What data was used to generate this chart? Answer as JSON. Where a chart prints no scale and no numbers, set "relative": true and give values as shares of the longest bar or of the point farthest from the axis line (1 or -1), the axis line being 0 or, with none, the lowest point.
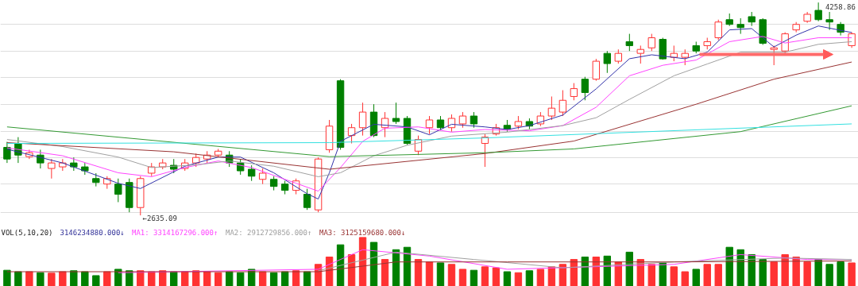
{
  "chart_data": [
    {
      "type": "candlestick",
      "categories": [
        null,
        null,
        null,
        null,
        null,
        null,
        null,
        null,
        null,
        null,
        null,
        null,
        null,
        null,
        null,
        null,
        null,
        null,
        null,
        null,
        null,
        null,
        null,
        null,
        null,
        null,
        null,
        null,
        null,
        null,
        null,
        null,
        null,
        null,
        null,
        null,
        null,
        null,
        null,
        null,
        null,
        null,
        null,
        null,
        null,
        null,
        null,
        null,
        null,
        null,
        null,
        null,
        null,
        null,
        null,
        null,
        null,
        null,
        null,
        null,
        null,
        null,
        null,
        null,
        null,
        null,
        null,
        null,
        null,
        null,
        null,
        null,
        null,
        null,
        null,
        null,
        null
      ],
      "ohlc": [
        [
          3154,
          3196,
          3035,
          3065
        ],
        [
          3184,
          3232,
          3035,
          3095
        ],
        [
          3083,
          3136,
          3065,
          3113
        ],
        [
          3095,
          3136,
          2993,
          3035
        ],
        [
          2993,
          3065,
          2916,
          3035
        ],
        [
          3005,
          3065,
          2975,
          3035
        ],
        [
          3035,
          3077,
          2975,
          3005
        ],
        [
          3005,
          3035,
          2945,
          2975
        ],
        [
          2916,
          2957,
          2856,
          2886
        ],
        [
          2874,
          2934,
          2838,
          2916
        ],
        [
          2874,
          2916,
          2736,
          2796
        ],
        [
          2886,
          2916,
          2659,
          2695
        ],
        [
          2695,
          2934,
          2635.09,
          2916
        ],
        [
          2957,
          3035,
          2934,
          3005
        ],
        [
          3005,
          3065,
          2987,
          3035
        ],
        [
          3017,
          3065,
          2957,
          2987
        ],
        [
          2993,
          3065,
          2975,
          3035
        ],
        [
          3035,
          3107,
          3005,
          3077
        ],
        [
          3065,
          3125,
          3035,
          3095
        ],
        [
          3095,
          3142,
          3077,
          3125
        ],
        [
          3095,
          3125,
          3005,
          3035
        ],
        [
          3035,
          3065,
          2945,
          2975
        ],
        [
          2987,
          3017,
          2898,
          2934
        ],
        [
          2910,
          2993,
          2874,
          2957
        ],
        [
          2910,
          2934,
          2826,
          2856
        ],
        [
          2874,
          2898,
          2796,
          2826
        ],
        [
          2826,
          2916,
          2796,
          2898
        ],
        [
          2796,
          2838,
          2677,
          2695
        ],
        [
          2677,
          3077,
          2659,
          3065
        ],
        [
          3136,
          3363,
          3113,
          3316
        ],
        [
          3662,
          3674,
          3136,
          3154
        ],
        [
          3244,
          3333,
          3184,
          3304
        ],
        [
          3304,
          3495,
          3244,
          3423
        ],
        [
          3423,
          3483,
          3232,
          3244
        ],
        [
          3304,
          3423,
          3232,
          3375
        ],
        [
          3375,
          3495,
          3333,
          3351
        ],
        [
          3375,
          3393,
          3172,
          3184
        ],
        [
          3125,
          3244,
          3095,
          3214
        ],
        [
          3304,
          3393,
          3256,
          3363
        ],
        [
          3363,
          3393,
          3286,
          3304
        ],
        [
          3304,
          3405,
          3274,
          3375
        ],
        [
          3333,
          3423,
          3304,
          3393
        ],
        [
          3393,
          3423,
          3304,
          3333
        ],
        [
          3184,
          3256,
          3005,
          3232
        ],
        [
          3256,
          3333,
          3244,
          3304
        ],
        [
          3322,
          3363,
          3274,
          3292
        ],
        [
          3316,
          3393,
          3292,
          3351
        ],
        [
          3351,
          3375,
          3292,
          3316
        ],
        [
          3333,
          3423,
          3316,
          3393
        ],
        [
          3393,
          3542,
          3363,
          3453
        ],
        [
          3423,
          3590,
          3393,
          3513
        ],
        [
          3542,
          3644,
          3513,
          3602
        ],
        [
          3674,
          3692,
          3513,
          3572
        ],
        [
          3674,
          3829,
          3662,
          3811
        ],
        [
          3871,
          3889,
          3722,
          3793
        ],
        [
          3811,
          3901,
          3793,
          3871
        ],
        [
          3960,
          4020,
          3889,
          3930
        ],
        [
          3871,
          3930,
          3793,
          3901
        ],
        [
          3913,
          4020,
          3889,
          3990
        ],
        [
          3978,
          3990,
          3823,
          3829
        ],
        [
          3841,
          3930,
          3811,
          3871
        ],
        [
          3841,
          3901,
          3781,
          3871
        ],
        [
          3930,
          3960,
          3871,
          3889
        ],
        [
          3930,
          3990,
          3901,
          3960
        ],
        [
          3990,
          4128,
          3972,
          4110
        ],
        [
          4128,
          4175,
          4080,
          4092
        ],
        [
          4092,
          4139,
          4020,
          4068
        ],
        [
          4151,
          4187,
          4080,
          4110
        ],
        [
          4128,
          4139,
          3936,
          3948
        ],
        [
          3901,
          3930,
          3781,
          3913
        ],
        [
          3889,
          4032,
          3865,
          4020
        ],
        [
          4050,
          4110,
          4032,
          4092
        ],
        [
          4116,
          4187,
          4104,
          4169
        ],
        [
          4199,
          4258.86,
          4116,
          4128
        ],
        [
          4128,
          4187,
          4050,
          4110
        ],
        [
          4092,
          4110,
          4008,
          4032
        ],
        [
          3930,
          4032,
          3913,
          4020
        ]
      ],
      "colors": [
        "#008000",
        "#008000",
        "#ff3232",
        "#008000",
        "#ff3232",
        "#ff3232",
        "#008000",
        "#008000",
        "#008000",
        "#ff3232",
        "#008000",
        "#008000",
        "#ff3232",
        "#ff3232",
        "#ff3232",
        "#008000",
        "#ff3232",
        "#ff3232",
        "#ff3232",
        "#ff3232",
        "#008000",
        "#008000",
        "#008000",
        "#ff3232",
        "#008000",
        "#008000",
        "#ff3232",
        "#008000",
        "#ff3232",
        "#ff3232",
        "#008000",
        "#ff3232",
        "#ff3232",
        "#008000",
        "#ff3232",
        "#008000",
        "#008000",
        "#ff3232",
        "#ff3232",
        "#008000",
        "#ff3232",
        "#ff3232",
        "#008000",
        "#ff3232",
        "#ff3232",
        "#008000",
        "#ff3232",
        "#008000",
        "#ff3232",
        "#ff3232",
        "#ff3232",
        "#ff3232",
        "#008000",
        "#ff3232",
        "#008000",
        "#ff3232",
        "#008000",
        "#ff3232",
        "#ff3232",
        "#008000",
        "#ff3232",
        "#ff3232",
        "#008000",
        "#ff3232",
        "#ff3232",
        "#008000",
        "#008000",
        "#008000",
        "#008000",
        "#ff3232",
        "#ff3232",
        "#ff3232",
        "#ff3232",
        "#008000",
        "#008000",
        "#008000",
        "#ff3232"
      ],
      "ylim": [
        2560,
        4275
      ],
      "yticks": [
        {
          "value": 2659,
          "label": null
        },
        {
          "value": 2874,
          "label": null
        },
        {
          "value": 3077,
          "label": null
        },
        {
          "value": 3274,
          "label": null
        },
        {
          "value": 3483,
          "label": null
        },
        {
          "value": 3686,
          "label": null
        },
        {
          "value": 3889,
          "label": null
        },
        {
          "value": 4092,
          "label": null
        }
      ],
      "grid": "y",
      "tick_labels": false,
      "annotations": [
        "←2635.09",
        "4258.86"
      ],
      "series": [
        {
          "type": "line",
          "color": "#3333aa",
          "values": [
            3140,
            null,
            null,
            null,
            null,
            3035,
            null,
            null,
            null,
            null,
            2880,
            null,
            2840,
            null,
            null,
            null,
            3010,
            null,
            null,
            3080,
            null,
            3080,
            null,
            null,
            2960,
            null,
            null,
            2800,
            2760,
            2960,
            3200,
            null,
            null,
            3330,
            null,
            null,
            3310,
            null,
            3250,
            null,
            3330,
            null,
            null,
            3310,
            null,
            3290,
            null,
            3320,
            null,
            null,
            3400,
            null,
            null,
            3600,
            null,
            null,
            3830,
            null,
            3860,
            null,
            null,
            3830,
            null,
            3880,
            null,
            4050,
            null,
            4060,
            null,
            3920,
            null,
            4010,
            null,
            4080,
            null,
            null,
            4030
          ]
        },
        {
          "type": "line",
          "color": "#ff44ff",
          "values": [
            3150,
            null,
            null,
            null,
            null,
            3090,
            null,
            null,
            null,
            null,
            2960,
            null,
            null,
            2930,
            null,
            null,
            3000,
            null,
            null,
            3050,
            null,
            null,
            3000,
            null,
            null,
            null,
            2880,
            null,
            2820,
            null,
            3000,
            null,
            3200,
            null,
            3300,
            null,
            null,
            3310,
            null,
            null,
            3270,
            null,
            null,
            3290,
            null,
            null,
            null,
            3280,
            null,
            null,
            3320,
            null,
            null,
            3460,
            null,
            null,
            3700,
            null,
            null,
            3780,
            null,
            null,
            3820,
            null,
            null,
            3960,
            null,
            null,
            4000,
            null,
            3950,
            null,
            null,
            3990,
            null,
            null,
            3990
          ]
        },
        {
          "type": "line",
          "color": "#a0a0a0",
          "values": [
            3214,
            null,
            null,
            null,
            null,
            3160,
            null,
            null,
            null,
            null,
            3080,
            null,
            null,
            3000,
            null,
            null,
            null,
            3020,
            null,
            null,
            3050,
            null,
            null,
            null,
            3010,
            null,
            null,
            null,
            2930,
            null,
            2960,
            null,
            null,
            3090,
            null,
            null,
            3170,
            null,
            null,
            null,
            3240,
            null,
            null,
            null,
            null,
            3270,
            null,
            null,
            null,
            null,
            3320,
            null,
            null,
            3380,
            null,
            null,
            3520,
            null,
            null,
            null,
            3700,
            null,
            null,
            3790,
            null,
            null,
            3880,
            null,
            null,
            null,
            3880,
            null,
            null,
            3940,
            null,
            null,
            3960
          ]
        },
        {
          "type": "line",
          "color": "#993333",
          "values": [
            3190,
            null,
            null,
            null,
            null,
            null,
            null,
            null,
            null,
            null,
            null,
            null,
            null,
            null,
            null,
            3120,
            null,
            null,
            null,
            null,
            null,
            null,
            null,
            null,
            null,
            null,
            null,
            null,
            null,
            2987,
            null,
            null,
            null,
            null,
            null,
            null,
            null,
            null,
            null,
            null,
            null,
            null,
            null,
            3107,
            null,
            null,
            null,
            null,
            null,
            null,
            null,
            3202,
            null,
            null,
            null,
            null,
            null,
            null,
            null,
            null,
            null,
            null,
            3483,
            null,
            null,
            null,
            null,
            null,
            null,
            3674,
            null,
            null,
            null,
            null,
            null,
            null,
            3805
          ]
        },
        {
          "type": "line",
          "color": "#339933",
          "values": [
            3310,
            null,
            null,
            null,
            null,
            null,
            null,
            null,
            null,
            null,
            null,
            null,
            null,
            null,
            null,
            null,
            null,
            null,
            null,
            null,
            null,
            null,
            null,
            null,
            null,
            null,
            null,
            null,
            null,
            3083,
            null,
            null,
            null,
            null,
            null,
            null,
            null,
            null,
            null,
            null,
            null,
            null,
            null,
            3113,
            null,
            null,
            null,
            null,
            null,
            null,
            null,
            3142,
            null,
            null,
            null,
            null,
            null,
            null,
            null,
            null,
            null,
            null,
            null,
            null,
            null,
            null,
            3274,
            null,
            null,
            null,
            null,
            null,
            null,
            null,
            null,
            null,
            3471
          ]
        },
        {
          "type": "line",
          "color": "#33e0e0",
          "values": [
            3184,
            null,
            null,
            null,
            null,
            null,
            null,
            null,
            null,
            null,
            null,
            null,
            null,
            null,
            null,
            null,
            null,
            null,
            null,
            null,
            null,
            null,
            null,
            null,
            null,
            null,
            null,
            null,
            null,
            3190,
            null,
            null,
            null,
            null,
            null,
            null,
            null,
            null,
            null,
            null,
            null,
            null,
            null,
            3226,
            null,
            null,
            null,
            null,
            null,
            null,
            null,
            null,
            null,
            null,
            null,
            null,
            null,
            null,
            null,
            null,
            null,
            null,
            null,
            null,
            null,
            null,
            null,
            null,
            null,
            null,
            null,
            null,
            null,
            null,
            null,
            null,
            3333
          ]
        }
      ]
    },
    {
      "type": "bar",
      "title": "VOL(5,10,20)",
      "subtitle": "3146234880.000↓",
      "relative": true,
      "tick_labels": false,
      "legend": "top left",
      "categories": [
        null,
        null,
        null,
        null,
        null,
        null,
        null,
        null,
        null,
        null,
        null,
        null,
        null,
        null,
        null,
        null,
        null,
        null,
        null,
        null,
        null,
        null,
        null,
        null,
        null,
        null,
        null,
        null,
        null,
        null,
        null,
        null,
        null,
        null,
        null,
        null,
        null,
        null,
        null,
        null,
        null,
        null,
        null,
        null,
        null,
        null,
        null,
        null,
        null,
        null,
        null,
        null,
        null,
        null,
        null,
        null,
        null,
        null,
        null,
        null,
        null,
        null,
        null,
        null,
        null,
        null,
        null,
        null,
        null,
        null,
        null,
        null,
        null,
        null,
        null,
        null,
        null
      ],
      "series": [
        {
          "type": "bar",
          "values": [
            0.33,
            0.3,
            0.3,
            0.28,
            0.27,
            0.3,
            0.32,
            0.3,
            0.22,
            0.3,
            0.35,
            0.32,
            0.32,
            0.3,
            0.32,
            0.3,
            0.3,
            0.32,
            0.3,
            0.28,
            0.3,
            0.28,
            0.35,
            0.3,
            0.28,
            0.3,
            0.32,
            0.3,
            0.45,
            0.6,
            0.85,
            0.65,
            1.0,
            0.9,
            0.55,
            0.75,
            0.8,
            0.55,
            0.5,
            0.48,
            0.45,
            0.35,
            0.33,
            0.4,
            0.38,
            0.3,
            0.28,
            0.32,
            0.35,
            0.4,
            0.45,
            0.55,
            0.6,
            0.6,
            0.62,
            0.5,
            0.7,
            0.55,
            0.45,
            0.48,
            0.4,
            0.3,
            0.35,
            0.45,
            0.45,
            0.8,
            0.75,
            0.65,
            0.55,
            0.5,
            0.65,
            0.6,
            0.5,
            0.55,
            0.45,
            0.5,
            0.48
          ],
          "colors": [
            "#008000",
            "#008000",
            "#ff3232",
            "#008000",
            "#ff3232",
            "#ff3232",
            "#008000",
            "#008000",
            "#008000",
            "#ff3232",
            "#008000",
            "#008000",
            "#ff3232",
            "#ff3232",
            "#ff3232",
            "#008000",
            "#ff3232",
            "#ff3232",
            "#ff3232",
            "#ff3232",
            "#008000",
            "#008000",
            "#008000",
            "#ff3232",
            "#008000",
            "#008000",
            "#ff3232",
            "#008000",
            "#ff3232",
            "#ff3232",
            "#008000",
            "#ff3232",
            "#ff3232",
            "#008000",
            "#ff3232",
            "#008000",
            "#008000",
            "#ff3232",
            "#ff3232",
            "#008000",
            "#ff3232",
            "#ff3232",
            "#008000",
            "#ff3232",
            "#ff3232",
            "#008000",
            "#ff3232",
            "#008000",
            "#ff3232",
            "#ff3232",
            "#ff3232",
            "#ff3232",
            "#008000",
            "#ff3232",
            "#008000",
            "#ff3232",
            "#008000",
            "#ff3232",
            "#ff3232",
            "#008000",
            "#ff3232",
            "#ff3232",
            "#008000",
            "#ff3232",
            "#ff3232",
            "#008000",
            "#008000",
            "#008000",
            "#008000",
            "#ff3232",
            "#ff3232",
            "#ff3232",
            "#ff3232",
            "#008000",
            "#008000",
            "#008000",
            "#ff3232"
          ]
        },
        {
          "type": "line",
          "name": "MA1: 3314167296.000↑",
          "color": "#ff44ff",
          "values": [
            null,
            null,
            null,
            null,
            null,
            null,
            null,
            null,
            null,
            null,
            0.28,
            null,
            null,
            null,
            null,
            null,
            null,
            null,
            null,
            null,
            null,
            null,
            null,
            null,
            null,
            null,
            null,
            null,
            0.35,
            null,
            null,
            null,
            0.75,
            null,
            null,
            null,
            null,
            null,
            0.62,
            null,
            null,
            null,
            null,
            null,
            null,
            0.35,
            null,
            null,
            null,
            null,
            null,
            null,
            null,
            null,
            null,
            null,
            null,
            null,
            null,
            null,
            0.45,
            null,
            null,
            null,
            null,
            null,
            0.65,
            null,
            null,
            null,
            null,
            null,
            0.55,
            null,
            null,
            null,
            0.55
          ]
        },
        {
          "type": "line",
          "name": "MA2: 2912729856.000↑",
          "color": "#a0a0a0",
          "values": [
            null,
            null,
            null,
            null,
            null,
            null,
            null,
            null,
            null,
            null,
            null,
            null,
            null,
            null,
            null,
            null,
            null,
            null,
            null,
            null,
            null,
            null,
            null,
            null,
            null,
            null,
            null,
            null,
            0.32,
            null,
            null,
            null,
            null,
            null,
            null,
            0.7,
            null,
            null,
            null,
            null,
            null,
            null,
            0.55,
            null,
            null,
            null,
            null,
            null,
            null,
            null,
            0.38,
            null,
            null,
            null,
            null,
            null,
            null,
            null,
            null,
            null,
            0.5,
            null,
            null,
            null,
            null,
            null,
            null,
            null,
            null,
            null,
            0.58,
            null,
            null,
            null,
            null,
            null,
            0.55
          ]
        },
        {
          "type": "line",
          "name": "MA3: 3125159680.000↓",
          "color": "#993333",
          "values": [
            0.3,
            null,
            null,
            null,
            null,
            null,
            null,
            null,
            null,
            null,
            null,
            null,
            null,
            null,
            null,
            null,
            null,
            null,
            null,
            null,
            null,
            null,
            null,
            null,
            null,
            null,
            null,
            null,
            0.3,
            null,
            null,
            null,
            null,
            null,
            null,
            0.5,
            null,
            null,
            null,
            null,
            null,
            null,
            null,
            null,
            null,
            0.5,
            null,
            null,
            null,
            null,
            null,
            null,
            null,
            null,
            null,
            null,
            null,
            null,
            null,
            null,
            0.5,
            null,
            null,
            null,
            null,
            null,
            null,
            null,
            null,
            null,
            null,
            null,
            null,
            null,
            null,
            null,
            0.52
          ]
        }
      ]
    }
  ]
}
